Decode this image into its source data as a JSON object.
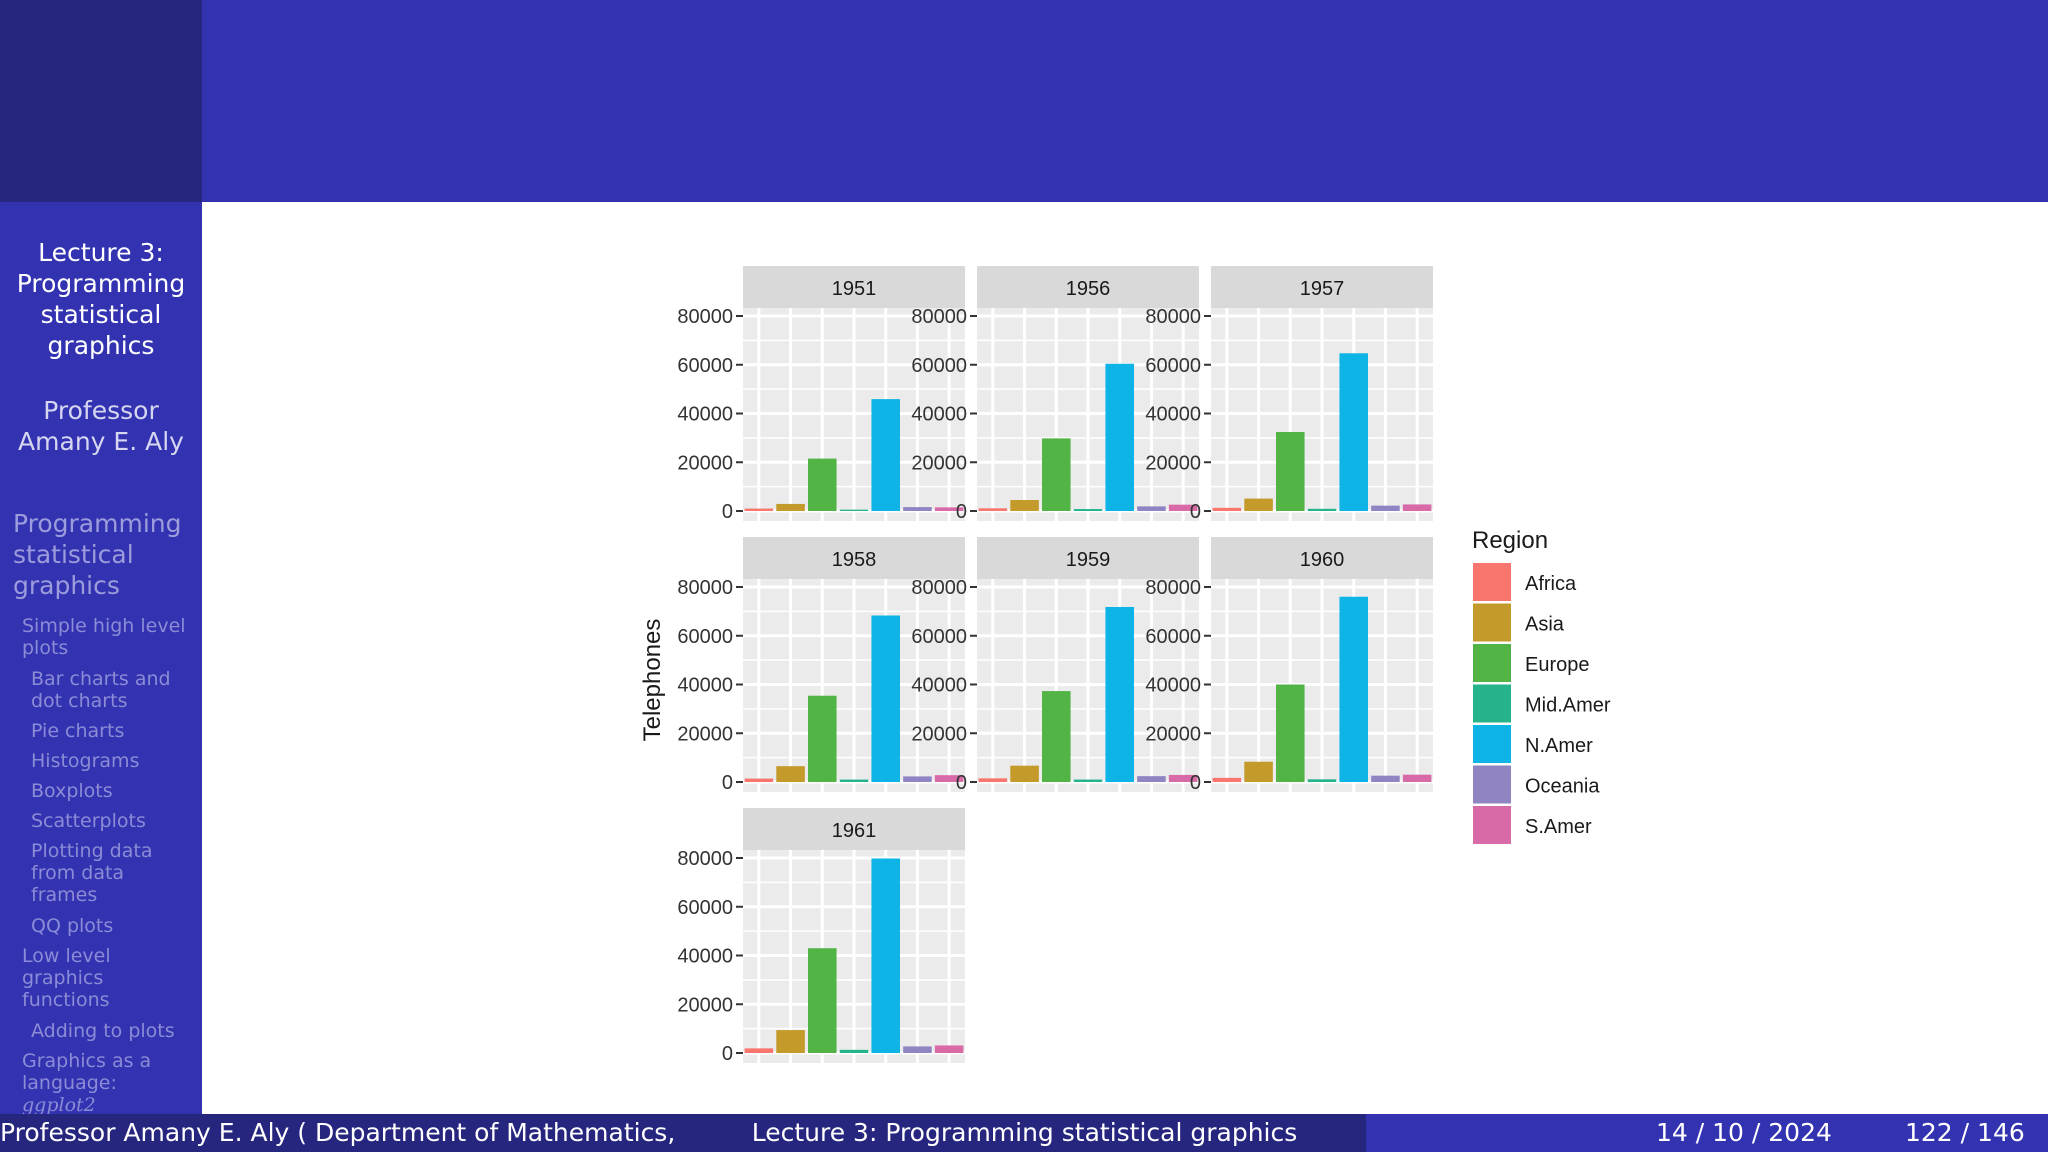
{
  "sidebar": {
    "title_lines": [
      "Lecture 3:",
      "Programming",
      "statistical",
      "graphics"
    ],
    "author_lines": [
      "Professor",
      "Amany E. Aly"
    ],
    "section_lines": [
      "Programming",
      "statistical",
      "graphics"
    ],
    "nav": [
      {
        "label": "Simple high level plots",
        "lines": [
          "Simple high level",
          "plots"
        ],
        "level": 1
      },
      {
        "label": "Bar charts and dot charts",
        "lines": [
          "Bar charts and",
          "dot charts"
        ],
        "level": 2
      },
      {
        "label": "Pie charts",
        "lines": [
          "Pie charts"
        ],
        "level": 2
      },
      {
        "label": "Histograms",
        "lines": [
          "Histograms"
        ],
        "level": 2
      },
      {
        "label": "Boxplots",
        "lines": [
          "Boxplots"
        ],
        "level": 2
      },
      {
        "label": "Scatterplots",
        "lines": [
          "Scatterplots"
        ],
        "level": 2
      },
      {
        "label": "Plotting data from data frames",
        "lines": [
          "Plotting data",
          "from data",
          "frames"
        ],
        "level": 2
      },
      {
        "label": "QQ plots",
        "lines": [
          "QQ plots"
        ],
        "level": 2
      },
      {
        "label": "Low level graphics functions",
        "lines": [
          "Low level",
          "graphics",
          "functions"
        ],
        "level": 1
      },
      {
        "label": "Adding to plots",
        "lines": [
          "Adding to plots"
        ],
        "level": 2
      },
      {
        "label": "Graphics as a language: ggplot2",
        "lines": [
          "Graphics as a",
          "language:",
          "ggplot2"
        ],
        "level": 1
      }
    ]
  },
  "footer": {
    "left": "Professor Amany E. Aly ( Department of Mathematics, F",
    "middle": "Lecture 3: Programming statistical graphics",
    "date": "14 / 10 / 2024",
    "page": "122 / 146"
  },
  "colors": {
    "header_bg": "#3333b2",
    "header_dark": "#26267f",
    "panel_bg": "#ebebeb",
    "strip_bg": "#d9d9d9"
  },
  "chart_data": {
    "type": "bar",
    "ylabel": "Telephones",
    "ylim": [
      0,
      80000
    ],
    "y_ticks": [
      0,
      20000,
      40000,
      60000,
      80000
    ],
    "legend_title": "Region",
    "legend_position": "right",
    "grid": true,
    "facets": [
      "1951",
      "1956",
      "1957",
      "1958",
      "1959",
      "1960",
      "1961"
    ],
    "series": [
      {
        "name": "Africa",
        "color": "#f8766d",
        "values": [
          1000,
          1100,
          1300,
          1400,
          1500,
          1700,
          1900
        ]
      },
      {
        "name": "Asia",
        "color": "#c49a2a",
        "values": [
          2900,
          4500,
          5100,
          6500,
          6700,
          8300,
          9400
        ]
      },
      {
        "name": "Europe",
        "color": "#53b446",
        "values": [
          21500,
          29800,
          32400,
          35400,
          37300,
          40000,
          43000
        ]
      },
      {
        "name": "Mid.Amer",
        "color": "#25b38c",
        "values": [
          560,
          800,
          900,
          1000,
          1000,
          1100,
          1300
        ]
      },
      {
        "name": "N.Amer",
        "color": "#0fb4e6",
        "values": [
          45900,
          60400,
          64700,
          68300,
          71800,
          76000,
          79800
        ]
      },
      {
        "name": "Oceania",
        "color": "#9184c3",
        "values": [
          1600,
          1900,
          2200,
          2300,
          2400,
          2600,
          2700
        ]
      },
      {
        "name": "S.Amer",
        "color": "#d76aa7",
        "values": [
          1500,
          2600,
          2700,
          2800,
          2900,
          3000,
          3100
        ]
      }
    ]
  }
}
